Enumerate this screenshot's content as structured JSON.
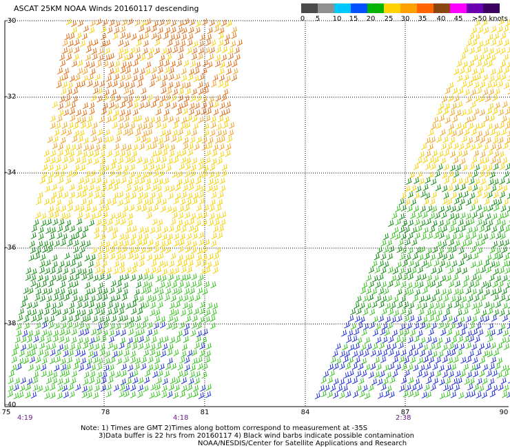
{
  "title": "ASCAT 25KM NOAA Winds 20160117 descending",
  "legend": {
    "labels": [
      "0",
      "5",
      "10",
      "15",
      "20",
      "25",
      "30",
      "35",
      "40",
      "45",
      ">50 knots"
    ],
    "colors": [
      "#4a4a4a",
      "#909090",
      "#00c8ff",
      "#0050ff",
      "#00b400",
      "#ffd200",
      "#ffa000",
      "#ff6400",
      "#8b4513",
      "#ff00ff",
      "#6a00b0",
      "#3c0060"
    ]
  },
  "axes": {
    "y_labels": [
      "-30",
      "-32",
      "-34",
      "-36",
      "-38",
      "-40"
    ],
    "x_labels": [
      "75",
      "78",
      "81",
      "84",
      "87",
      "90"
    ]
  },
  "pass_times": [
    "4:19",
    "4:18",
    "2:38"
  ],
  "notes": {
    "line1": "Note: 1) Times are GMT 2)Times along bottom correspond to measurement at -35S",
    "line2": "3)Data buffer is 22 hrs from 20160117 4) Black wind barbs indicate possible contamination",
    "line3": "NOAA/NESDIS/Center for Satellite Applications and Research"
  },
  "wind_colors": {
    "orange_dark": "#e06a10",
    "orange": "#f0a020",
    "yellow": "#f5d000",
    "green_dark": "#0a8a0a",
    "green": "#33c21a",
    "blue": "#1a2ad8"
  }
}
